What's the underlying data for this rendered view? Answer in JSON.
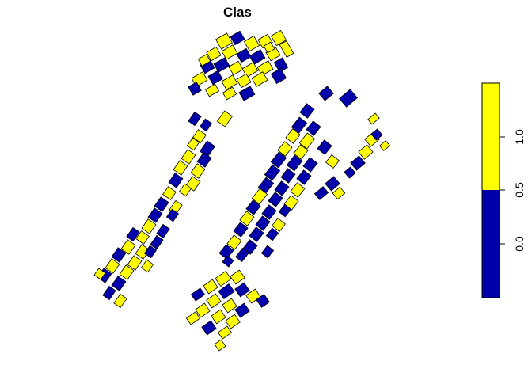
{
  "map": {
    "title": "Clas",
    "colors": {
      "low": "#0000AA",
      "high": "#FFFF00",
      "outline": "#000000"
    }
  },
  "legend": {
    "ticks": [
      "0.0",
      "0.5",
      "1.0"
    ],
    "bins": [
      {
        "from": -0.5,
        "to": 0.5,
        "color": "#0000AA"
      },
      {
        "from": 0.5,
        "to": 1.5,
        "color": "#FFFF00"
      }
    ]
  }
}
